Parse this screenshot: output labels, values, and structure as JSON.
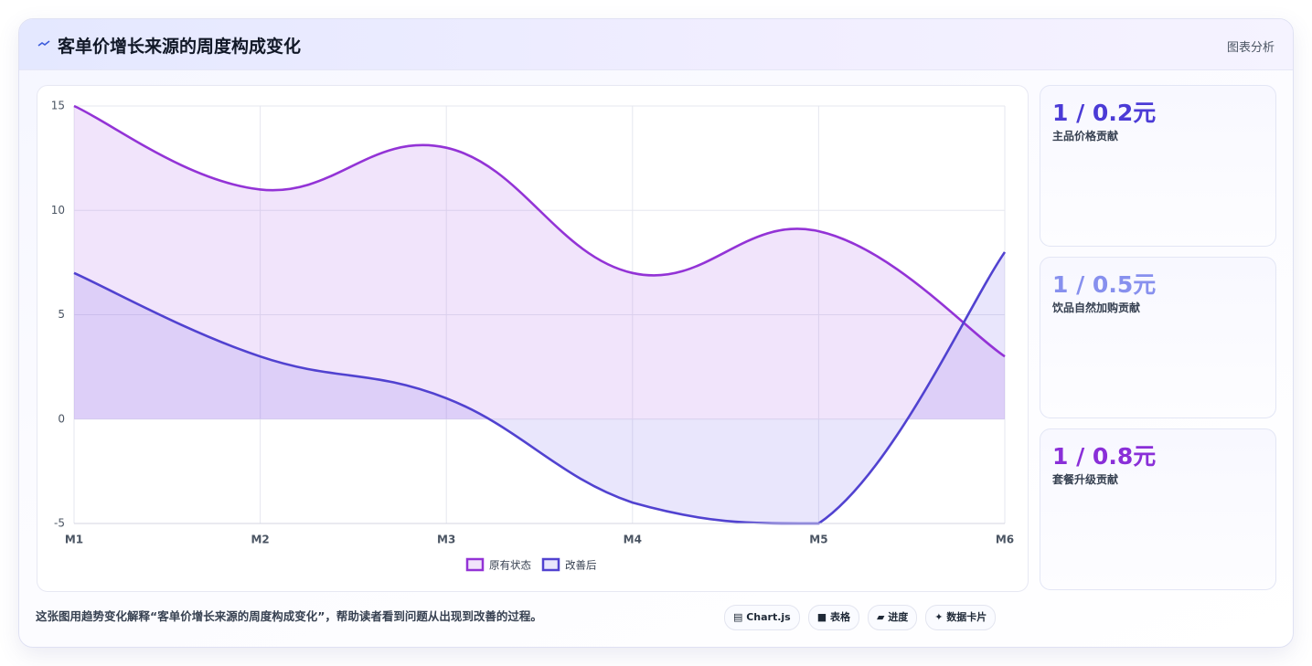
{
  "header": {
    "title": "客单价增长来源的周度构成变化",
    "action": "图表分析"
  },
  "chart_data": {
    "type": "line",
    "categories": [
      "M1",
      "M2",
      "M3",
      "M4",
      "M5",
      "M6"
    ],
    "series": [
      {
        "name": "原有状态",
        "color": "#9333d6",
        "fill": "rgba(168,85,230,0.16)",
        "values": [
          15,
          11,
          13,
          7,
          9,
          3
        ]
      },
      {
        "name": "改善后",
        "color": "#5142d0",
        "fill": "rgba(110,90,235,0.15)",
        "values": [
          7,
          3,
          1,
          -4,
          -5,
          8
        ]
      }
    ],
    "ylim": [
      -5,
      15
    ],
    "yticks": [
      -5,
      0,
      5,
      10,
      15
    ],
    "grid": true,
    "smooth": true,
    "fill": "origin",
    "legend": "bottom"
  },
  "cards": [
    {
      "value": "1 / 0.2元",
      "label": "主品价格贡献",
      "color": "#4b3bd6"
    },
    {
      "value": "1 / 0.5元",
      "label": "饮品自然加购贡献",
      "color": "#8790ee"
    },
    {
      "value": "1 / 0.8元",
      "label": "套餐升级贡献",
      "color": "#8a2fd8"
    }
  ],
  "footer": {
    "text": "这张图用趋势变化解释“客单价增长来源的周度构成变化”，帮助读者看到问题从出现到改善的过程。",
    "chips": [
      "▤ Chart.js",
      "■ 表格",
      "▰ 进度",
      "✦ 数据卡片"
    ]
  }
}
